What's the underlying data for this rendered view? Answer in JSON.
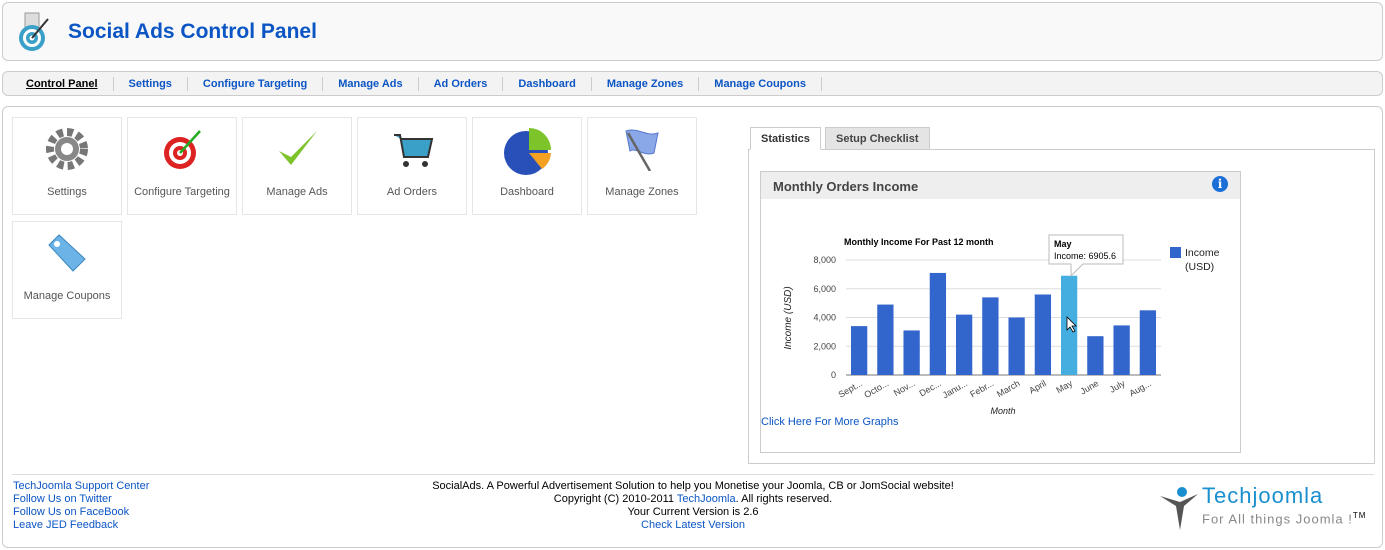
{
  "header": {
    "title": "Social Ads Control Panel"
  },
  "nav": [
    {
      "label": "Control Panel",
      "active": true
    },
    {
      "label": "Settings"
    },
    {
      "label": "Configure Targeting"
    },
    {
      "label": "Manage Ads"
    },
    {
      "label": "Ad Orders"
    },
    {
      "label": "Dashboard"
    },
    {
      "label": "Manage Zones"
    },
    {
      "label": "Manage Coupons"
    }
  ],
  "tiles": [
    {
      "label": "Settings",
      "icon": "gear-icon"
    },
    {
      "label": "Configure Targeting",
      "icon": "target-icon"
    },
    {
      "label": "Manage Ads",
      "icon": "checkmark-icon"
    },
    {
      "label": "Ad Orders",
      "icon": "cart-icon"
    },
    {
      "label": "Dashboard",
      "icon": "pie-chart-icon"
    },
    {
      "label": "Manage Zones",
      "icon": "flag-icon"
    },
    {
      "label": "Manage Coupons",
      "icon": "tag-icon"
    }
  ],
  "tabs": [
    {
      "label": "Statistics",
      "active": true
    },
    {
      "label": "Setup Checklist"
    }
  ],
  "panel": {
    "title": "Monthly Orders Income",
    "more_link": "Click Here For More Graphs"
  },
  "chart_data": {
    "type": "bar",
    "title": "Monthly Income For Past 12 month",
    "xlabel": "Month",
    "ylabel": "Income (USD)",
    "categories": [
      "Sept...",
      "Octo...",
      "Nov...",
      "Dec...",
      "Janu...",
      "Febr...",
      "March",
      "April",
      "May",
      "June",
      "July",
      "Aug..."
    ],
    "series": [
      {
        "name": "Income (USD)",
        "values": [
          3400,
          4900,
          3100,
          7100,
          4200,
          5400,
          4000,
          5600,
          6905.6,
          2700,
          3450,
          4500
        ]
      }
    ],
    "ylim": [
      0,
      8000
    ],
    "yticks": [
      "0",
      "2,000",
      "4,000",
      "6,000",
      "8,000"
    ],
    "grid": true,
    "legend": "right",
    "colors": {
      "bar": "#3366cc",
      "highlight": "#45aee0"
    },
    "tooltip": {
      "title": "May",
      "text": "Income: 6905.6",
      "index": 8
    }
  },
  "footer": {
    "links": [
      "TechJoomla Support Center",
      "Follow Us on Twitter",
      "Follow Us on FaceBook",
      "Leave JED Feedback"
    ],
    "line1": "SocialAds. A Powerful Advertisement Solution to help you Monetise your Joomla, CB or JomSocial website!",
    "copy_pre": "Copyright (C) 2010-2011 ",
    "copy_link": "TechJoomla",
    "copy_post": ". All rights reserved.",
    "version": "Your Current Version is 2.6",
    "check": "Check Latest Version",
    "brand": "Techjoomla",
    "tagline": "For All things Joomla !",
    "tm": "TM"
  }
}
